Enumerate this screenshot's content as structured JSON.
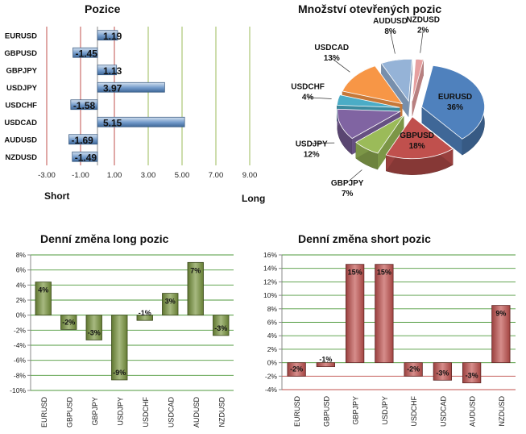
{
  "chart_data": [
    {
      "type": "bar",
      "orientation": "horizontal",
      "title": "Pozice",
      "categories": [
        "EURUSD",
        "GBPUSD",
        "GBPJPY",
        "USDJPY",
        "USDCHF",
        "USDCAD",
        "AUDUSD",
        "NZDUSD"
      ],
      "values": [
        1.19,
        -1.45,
        1.13,
        3.97,
        -1.58,
        5.15,
        -1.69,
        -1.49
      ],
      "value_labels": [
        "1.19",
        "-1.45",
        "1.13",
        "3.97",
        "-1.58",
        "5.15",
        "-1.69",
        "-1.49"
      ],
      "xlim": [
        -3.0,
        9.0
      ],
      "x_ticks": [
        "-3.00",
        "-1.00",
        "1.00",
        "3.00",
        "5.00",
        "7.00",
        "9.00"
      ],
      "x_tick_values": [
        -3,
        -1,
        1,
        3,
        5,
        7,
        9
      ],
      "left_label": "Short",
      "right_label": "Long",
      "bar_color": "#4f81bd",
      "gridline_colors": [
        "#c0504d",
        "#c0504d",
        "#c0504d",
        "#9bbb59",
        "#9bbb59",
        "#9bbb59",
        "#9bbb59"
      ]
    },
    {
      "type": "pie",
      "title": "Množství otevřených pozic",
      "labels": [
        "EURUSD",
        "GBPUSD",
        "GBPJPY",
        "USDJPY",
        "USDCHF",
        "USDCAD",
        "AUDUSD",
        "NZDUSD"
      ],
      "values": [
        36,
        18,
        7,
        12,
        4,
        13,
        8,
        2
      ],
      "value_labels": [
        "36%",
        "18%",
        "7%",
        "12%",
        "4%",
        "13%",
        "8%",
        "2%"
      ],
      "colors": [
        "#4f81bd",
        "#c0504d",
        "#9bbb59",
        "#8064a2",
        "#4bacc6",
        "#f79646",
        "#95b3d7",
        "#e6a0a0"
      ]
    },
    {
      "type": "bar",
      "title": "Denní změna long pozic",
      "categories": [
        "EURUSD",
        "GBPUSD",
        "GBPJPY",
        "USDJPY",
        "USDCHF",
        "USDCAD",
        "AUDUSD",
        "NZDUSD"
      ],
      "values": [
        4,
        -2,
        -3,
        -9,
        -1,
        3,
        7,
        -3
      ],
      "value_labels": [
        "4%",
        "-2%",
        "-3%",
        "-9%",
        "-1%",
        "3%",
        "7%",
        "-3%"
      ],
      "plotted_values": [
        4.4,
        -1.9,
        -3.3,
        -8.6,
        -0.7,
        2.9,
        7.0,
        -2.7
      ],
      "ylim": [
        -10,
        8
      ],
      "y_ticks": [
        "8%",
        "6%",
        "4%",
        "2%",
        "0%",
        "-2%",
        "-4%",
        "-6%",
        "-8%",
        "-10%"
      ],
      "y_tick_values": [
        8,
        6,
        4,
        2,
        0,
        -2,
        -4,
        -6,
        -8,
        -10
      ],
      "bar_color": "#77933c",
      "grid_color": "#4f9a3c",
      "grid": true
    },
    {
      "type": "bar",
      "title": "Denní změna short pozic",
      "categories": [
        "EURUSD",
        "GBPUSD",
        "GBPJPY",
        "USDJPY",
        "USDCHF",
        "USDCAD",
        "AUDUSD",
        "NZDUSD"
      ],
      "values": [
        -2,
        -1,
        15,
        15,
        -2,
        -3,
        -3,
        9
      ],
      "value_labels": [
        "-2%",
        "-1%",
        "15%",
        "15%",
        "-2%",
        "-3%",
        "-3%",
        "9%"
      ],
      "plotted_values": [
        -2.0,
        -0.6,
        14.6,
        14.6,
        -2.0,
        -2.6,
        -3.0,
        8.5
      ],
      "ylim": [
        -4,
        16
      ],
      "y_ticks": [
        "16%",
        "14%",
        "12%",
        "10%",
        "8%",
        "6%",
        "4%",
        "2%",
        "0%",
        "-2%",
        "-4%"
      ],
      "y_tick_values": [
        16,
        14,
        12,
        10,
        8,
        6,
        4,
        2,
        0,
        -2,
        -4
      ],
      "bar_color": "#c0504d",
      "grid_color_positive": "#4f9a3c",
      "grid_color_negative": "#c0504d",
      "grid": true
    }
  ]
}
